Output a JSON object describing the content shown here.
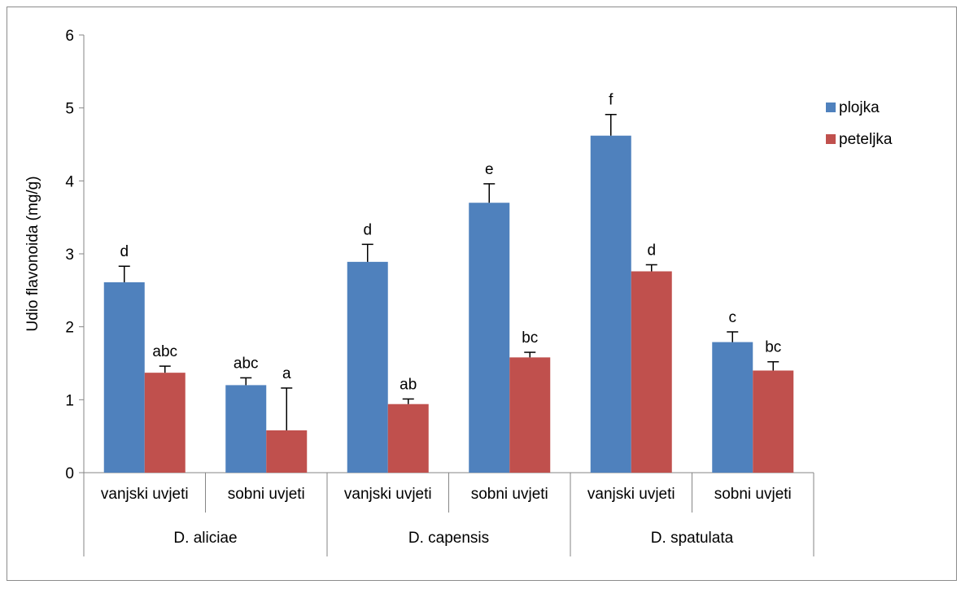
{
  "chart_data": {
    "type": "bar",
    "ylabel": "Udio flavonoida (mg/g)",
    "ylim": [
      0,
      6
    ],
    "yticks": [
      "0",
      "1",
      "2",
      "3",
      "4",
      "5",
      "6"
    ],
    "groups": [
      {
        "name": "D. aliciae",
        "categories": [
          "vanjski uvjeti",
          "sobni uvjeti"
        ]
      },
      {
        "name": "D. capensis",
        "categories": [
          "vanjski uvjeti",
          "sobni uvjeti"
        ]
      },
      {
        "name": "D. spatulata",
        "categories": [
          "vanjski uvjeti",
          "sobni uvjeti"
        ]
      }
    ],
    "series": [
      {
        "name": "plojka",
        "color": "#4f81bd",
        "values": [
          2.61,
          1.2,
          2.89,
          3.7,
          4.62,
          1.79
        ],
        "errors": [
          0.22,
          0.1,
          0.24,
          0.26,
          0.29,
          0.14
        ],
        "labels": [
          "d",
          "abc",
          "d",
          "e",
          "f",
          "c"
        ]
      },
      {
        "name": "peteljka",
        "color": "#c0504d",
        "values": [
          1.37,
          0.58,
          0.94,
          1.58,
          2.76,
          1.4
        ],
        "errors": [
          0.09,
          0.58,
          0.07,
          0.07,
          0.09,
          0.12
        ],
        "labels": [
          "abc",
          "a",
          "ab",
          "bc",
          "d",
          "bc"
        ]
      }
    ],
    "legend_position": "top-right",
    "grid": false
  }
}
